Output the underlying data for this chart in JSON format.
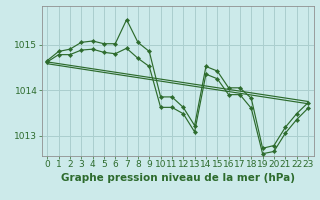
{
  "xlabel": "Graphe pression niveau de la mer (hPa)",
  "bg_color": "#cceaea",
  "grid_color": "#aacece",
  "line_color": "#2d6b2d",
  "xlim": [
    -0.5,
    23.5
  ],
  "ylim": [
    1012.55,
    1015.85
  ],
  "yticks": [
    1013,
    1014,
    1015
  ],
  "xticks": [
    0,
    1,
    2,
    3,
    4,
    5,
    6,
    7,
    8,
    9,
    10,
    11,
    12,
    13,
    14,
    15,
    16,
    17,
    18,
    19,
    20,
    21,
    22,
    23
  ],
  "xlabel_fontsize": 7.5,
  "tick_fontsize": 6.5,
  "s1": [
    1014.65,
    1014.85,
    1014.9,
    1015.05,
    1015.08,
    1015.02,
    1015.02,
    1015.55,
    1015.05,
    1014.85,
    1013.85,
    1013.85,
    1013.62,
    1013.22,
    1014.52,
    1014.42,
    1014.05,
    1014.05,
    1013.82,
    1012.72,
    1012.78,
    1013.18,
    1013.48,
    1013.72
  ],
  "s2": [
    1014.62,
    1014.78,
    1014.78,
    1014.88,
    1014.9,
    1014.83,
    1014.8,
    1014.92,
    1014.7,
    1014.52,
    1013.62,
    1013.62,
    1013.48,
    1013.08,
    1014.35,
    1014.25,
    1013.9,
    1013.9,
    1013.6,
    1012.6,
    1012.65,
    1013.05,
    1013.35,
    1013.6
  ],
  "trend1_x": [
    0,
    23
  ],
  "trend1_y": [
    1014.62,
    1013.75
  ],
  "trend2_x": [
    0,
    23
  ],
  "trend2_y": [
    1014.58,
    1013.7
  ]
}
